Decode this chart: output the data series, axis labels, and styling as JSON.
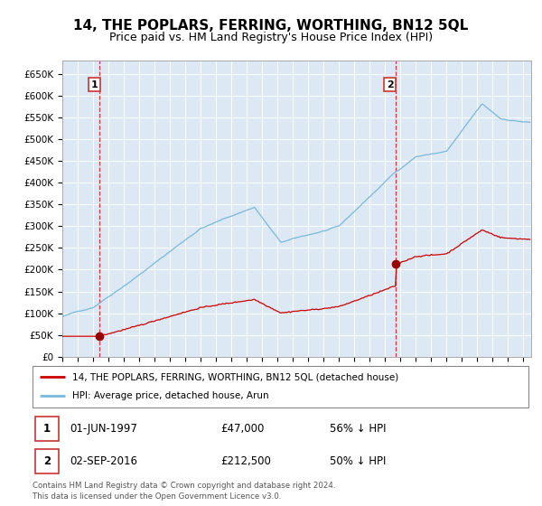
{
  "title": "14, THE POPLARS, FERRING, WORTHING, BN12 5QL",
  "subtitle": "Price paid vs. HM Land Registry's House Price Index (HPI)",
  "title_fontsize": 11,
  "subtitle_fontsize": 9,
  "bg_color": "#dce9f5",
  "hpi_color": "#7ab8d9",
  "property_color": "#cc0000",
  "marker_color": "#990000",
  "dashed_line_color": "#dd3333",
  "legend_label_property": "14, THE POPLARS, FERRING, WORTHING, BN12 5QL (detached house)",
  "legend_label_hpi": "HPI: Average price, detached house, Arun",
  "sale1_year": 1997.42,
  "sale1_price": 47000,
  "sale2_year": 2016.67,
  "sale2_price": 212500,
  "footnote": "Contains HM Land Registry data © Crown copyright and database right 2024.\nThis data is licensed under the Open Government Licence v3.0.",
  "ylim": [
    0,
    680000
  ],
  "yticks": [
    0,
    50000,
    100000,
    150000,
    200000,
    250000,
    300000,
    350000,
    400000,
    450000,
    500000,
    550000,
    600000,
    650000
  ],
  "ytick_labels": [
    "£0",
    "£50K",
    "£100K",
    "£150K",
    "£200K",
    "£250K",
    "£300K",
    "£350K",
    "£400K",
    "£450K",
    "£500K",
    "£550K",
    "£600K",
    "£650K"
  ],
  "xlim_start": 1995.0,
  "xlim_end": 2025.5
}
